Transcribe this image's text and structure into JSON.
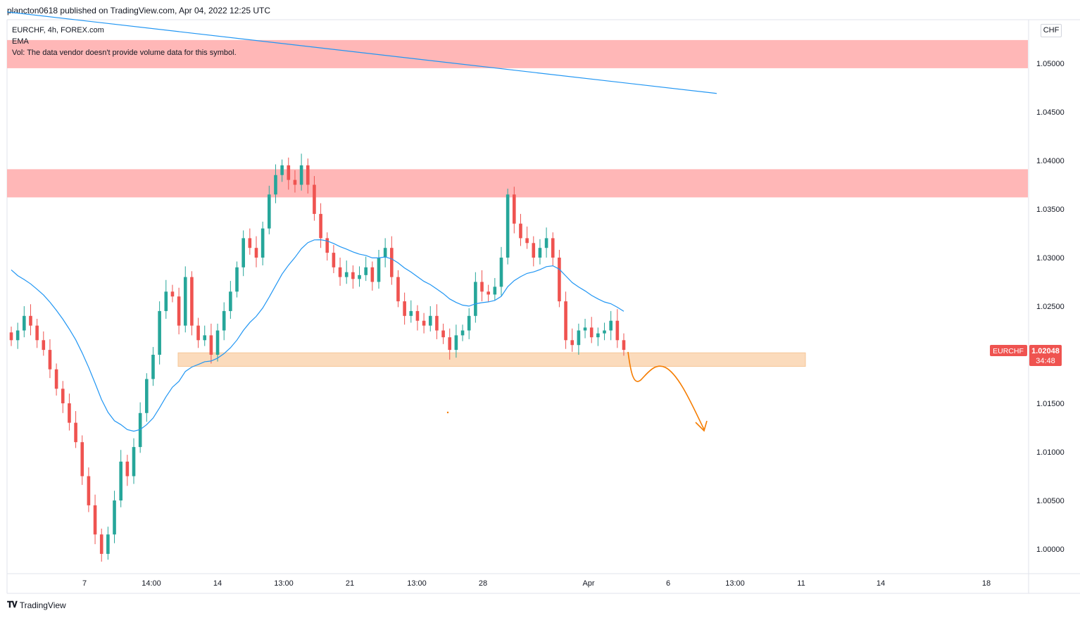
{
  "header": {
    "published": "plancton0618 published on TradingView.com, Apr 04, 2022 12:25 UTC"
  },
  "legend": {
    "symbol": "EURCHF, 4h, FOREX.com",
    "ema": "EMA",
    "vol": "Vol: The data vendor doesn't provide volume data for this symbol."
  },
  "currency": "CHF",
  "footer": {
    "brand": "TradingView"
  },
  "price_label": {
    "symbol": "EURCHF",
    "price": "1.02048",
    "countdown": "34:48"
  },
  "colors": {
    "up": "#26a69a",
    "down": "#ef5350",
    "ema": "#2196f3",
    "resistance_zone": "#ffb3b3",
    "support_zone": "#fbd8b5",
    "drawing": "#f57c00"
  },
  "chart_data": {
    "type": "candlestick",
    "y_ticks": [
      "1.05000",
      "1.04500",
      "1.04000",
      "1.03500",
      "1.03000",
      "1.02500",
      "1.01500",
      "1.01000",
      "1.00500",
      "1.00000"
    ],
    "y_tick_values": [
      1.05,
      1.045,
      1.04,
      1.035,
      1.03,
      1.025,
      1.015,
      1.01,
      1.005,
      1.0
    ],
    "ylim": [
      0.9975,
      1.0535
    ],
    "x_ticks": [
      "7",
      "14:00",
      "14",
      "13:00",
      "21",
      "13:00",
      "28",
      "Apr",
      "6",
      "13:00",
      "11",
      "14",
      "18"
    ],
    "close_series": [
      1.0215,
      1.0225,
      1.024,
      1.023,
      1.0215,
      1.0205,
      1.0185,
      1.0165,
      1.015,
      1.013,
      1.011,
      1.0075,
      1.0045,
      1.0015,
      0.9995,
      1.0015,
      1.005,
      1.009,
      1.0075,
      1.0105,
      1.014,
      1.0175,
      1.02,
      1.0245,
      1.0265,
      1.026,
      1.023,
      1.028,
      1.023,
      1.0215,
      1.022,
      1.02,
      1.0225,
      1.0245,
      1.0265,
      1.029,
      1.032,
      1.031,
      1.03,
      1.033,
      1.0365,
      1.0385,
      1.0395,
      1.038,
      1.0375,
      1.0395,
      1.0375,
      1.0345,
      1.032,
      1.0305,
      1.029,
      1.028,
      1.0285,
      1.0278,
      1.0282,
      1.029,
      1.0275,
      1.03,
      1.031,
      1.028,
      1.0255,
      1.024,
      1.0245,
      1.0235,
      1.023,
      1.024,
      1.0225,
      1.0218,
      1.0205,
      1.022,
      1.0225,
      1.024,
      1.0275,
      1.0265,
      1.0262,
      1.027,
      1.03,
      1.0365,
      1.0335,
      1.032,
      1.0315,
      1.03,
      1.031,
      1.032,
      1.03,
      1.0255,
      1.0215,
      1.021,
      1.0225,
      1.0228,
      1.0218,
      1.0222,
      1.0225,
      1.0235,
      1.0215,
      1.0205
    ],
    "ema_start": 1.0295,
    "ema_end": 1.0245,
    "zones": [
      {
        "name": "resistance-top",
        "from": 1.0495,
        "to": 1.0524
      },
      {
        "name": "resistance-mid",
        "from": 1.0362,
        "to": 1.0391
      },
      {
        "name": "support",
        "from": 1.0188,
        "to": 1.0202
      }
    ],
    "trendline": {
      "from": 1.0553,
      "to": 1.0469
    },
    "last_price": 1.02048
  }
}
